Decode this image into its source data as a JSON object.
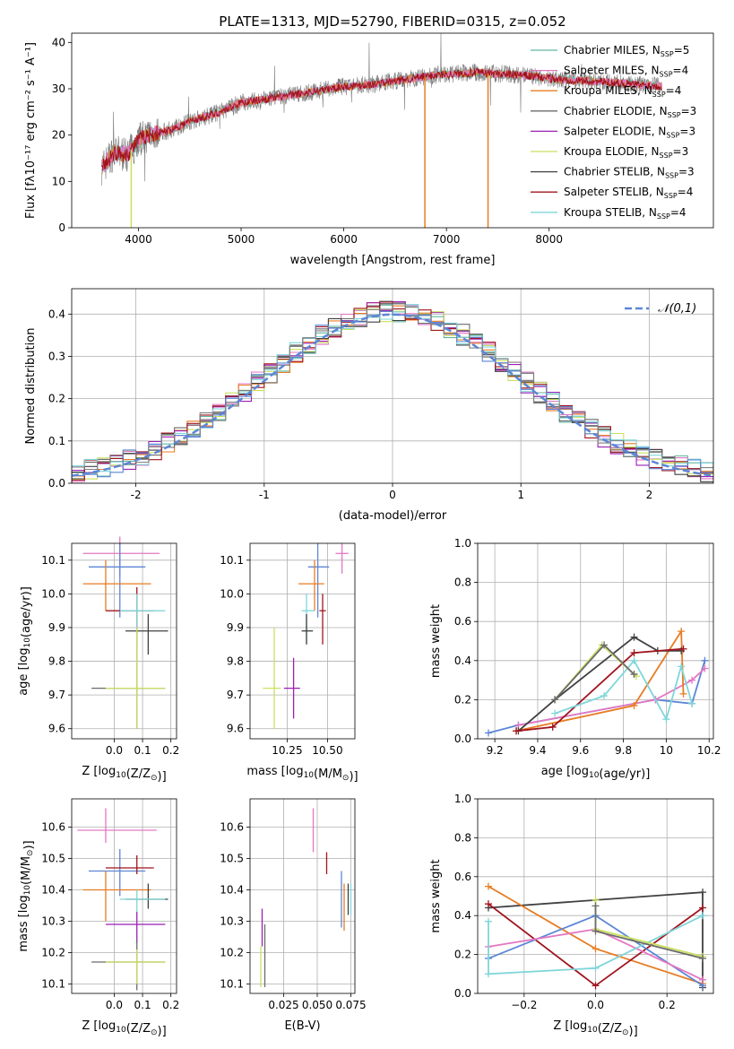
{
  "title": "PLATE=1313, MJD=52790, FIBERID=0315, z=0.052",
  "legend_spectrum": [
    {
      "model": "Chabrier MILES",
      "nssp": "5",
      "color": "#5fb8a0"
    },
    {
      "model": "Salpeter MILES",
      "nssp": "4",
      "color": "#e377c2"
    },
    {
      "model": "Kroupa MILES",
      "nssp": "4",
      "color": "#e87c22"
    },
    {
      "model": "Chabrier ELODIE",
      "nssp": "3",
      "color": "#6b6b6b"
    },
    {
      "model": "Salpeter ELODIE",
      "nssp": "3",
      "color": "#9b1fb5"
    },
    {
      "model": "Kroupa ELODIE",
      "nssp": "3",
      "color": "#c9e060"
    },
    {
      "model": "Chabrier STELIB",
      "nssp": "3",
      "color": "#404040"
    },
    {
      "model": "Salpeter STELIB",
      "nssp": "4",
      "color": "#a0141e"
    },
    {
      "model": "Kroupa STELIB",
      "nssp": "4",
      "color": "#7fd6d9"
    }
  ],
  "chart_data": [
    {
      "type": "line",
      "id": "spectrum",
      "title": "PLATE=1313, MJD=52790, FIBERID=0315, z=0.052",
      "xlabel": "wavelength [Angstrom, rest frame]",
      "ylabel": "Flux [fλ10⁻¹⁷ erg cm⁻² s⁻¹ A⁻¹]",
      "xlim": [
        3350,
        9600
      ],
      "ylim": [
        0,
        42
      ],
      "xticks": [
        4000,
        5000,
        6000,
        7000,
        8000
      ],
      "yticks": [
        0,
        10,
        20,
        30,
        40
      ],
      "continuum": {
        "x": [
          3650,
          3750,
          3900,
          4000,
          4100,
          4300,
          4500,
          4800,
          5000,
          5300,
          5600,
          6000,
          6300,
          6600,
          6900,
          7300,
          7700,
          8100,
          8500,
          8800,
          9100
        ],
        "y": [
          13,
          16,
          16,
          19,
          20,
          21,
          23,
          25,
          27,
          28,
          29,
          30.5,
          31,
          32,
          33,
          33.5,
          33,
          32,
          31.5,
          31,
          30.5
        ]
      },
      "grid": false
    },
    {
      "type": "line",
      "id": "residual_histogram",
      "xlabel": "(data-model)/error",
      "ylabel": "Normed distribution",
      "xlim": [
        -2.5,
        2.5
      ],
      "ylim": [
        0,
        0.46
      ],
      "xticks": [
        -2,
        -1,
        0,
        1,
        2
      ],
      "yticks": [
        0.0,
        0.1,
        0.2,
        0.3,
        0.4
      ],
      "reference_curve": {
        "label": "𝒩(0,1)",
        "mean": 0,
        "sigma": 1,
        "style": "dashed",
        "color": "#5b86d6"
      },
      "bin_width": 0.1,
      "grid": true
    },
    {
      "type": "scatter",
      "id": "age_vs_Z",
      "xlabel": "Z [log10(Z/Z⊙)]",
      "ylabel": "age [log10(age/yr)]",
      "xlim": [
        -0.15,
        0.22
      ],
      "ylim": [
        9.57,
        10.15
      ],
      "xticks": [
        0.0,
        0.1,
        0.2
      ],
      "xticklabels": [
        "0.0",
        "0.1",
        "0.2"
      ],
      "yticks": [
        9.6,
        9.7,
        9.8,
        9.9,
        10.0,
        10.1
      ],
      "points": [
        {
          "x": 0.02,
          "xerr": [
            0.13,
            0.14
          ],
          "y": 10.12,
          "yerr": [
            0.07,
            0.05
          ],
          "color": "#e377c2"
        },
        {
          "x": 0.02,
          "xerr": [
            0.11,
            0.09
          ],
          "y": 10.08,
          "yerr": [
            0.15,
            0.07
          ],
          "color": "#5b86d6"
        },
        {
          "x": -0.03,
          "xerr": [
            0.08,
            0.16
          ],
          "y": 10.03,
          "yerr": [
            0.08,
            0.07
          ],
          "color": "#e87c22"
        },
        {
          "x": 0.08,
          "xerr": [
            0.11,
            0.06
          ],
          "y": 9.95,
          "yerr": [
            0.1,
            0.07
          ],
          "color": "#a0141e"
        },
        {
          "x": 0.08,
          "xerr": [
            0.06,
            0.1
          ],
          "y": 9.95,
          "yerr": [
            0.1,
            0.05
          ],
          "color": "#7fd6d9"
        },
        {
          "x": 0.12,
          "xerr": [
            0.08,
            0.07
          ],
          "y": 9.89,
          "yerr": [
            0.07,
            0.05
          ],
          "color": "#404040"
        },
        {
          "x": 0.08,
          "xerr": [
            0.16,
            0.1
          ],
          "y": 9.72,
          "yerr": [
            0.12,
            0.18
          ],
          "color": "#6b6b6b"
        },
        {
          "x": 0.08,
          "xerr": [
            0.11,
            0.1
          ],
          "y": 9.72,
          "yerr": [
            0.12,
            0.18
          ],
          "color": "#c9e060"
        }
      ],
      "grid": true
    },
    {
      "type": "scatter",
      "id": "age_vs_mass",
      "xlabel": "mass [log10(M/M⊙)]",
      "ylabel": "",
      "xlim": [
        10.02,
        10.67
      ],
      "ylim": [
        9.57,
        10.15
      ],
      "xticks": [
        10.25,
        10.5
      ],
      "xticklabels": [
        "10.25",
        "10.50"
      ],
      "yticks": [
        9.6,
        9.7,
        9.8,
        9.9,
        10.0,
        10.1
      ],
      "points": [
        {
          "x": 10.59,
          "xerr": [
            0.04,
            0.04
          ],
          "y": 10.12,
          "yerr": [
            0.06,
            0.03
          ],
          "color": "#e377c2"
        },
        {
          "x": 10.44,
          "xerr": [
            0.06,
            0.07
          ],
          "y": 10.08,
          "yerr": [
            0.15,
            0.07
          ],
          "color": "#5b86d6"
        },
        {
          "x": 10.42,
          "xerr": [
            0.1,
            0.06
          ],
          "y": 10.03,
          "yerr": [
            0.08,
            0.07
          ],
          "color": "#e87c22"
        },
        {
          "x": 10.47,
          "xerr": [
            0.02,
            0.02
          ],
          "y": 9.95,
          "yerr": [
            0.1,
            0.05
          ],
          "color": "#a0141e"
        },
        {
          "x": 10.37,
          "xerr": [
            0.03,
            0.05
          ],
          "y": 9.95,
          "yerr": [
            0.1,
            0.05
          ],
          "color": "#7fd6d9"
        },
        {
          "x": 10.37,
          "xerr": [
            0.03,
            0.04
          ],
          "y": 9.89,
          "yerr": [
            0.04,
            0.05
          ],
          "color": "#404040"
        },
        {
          "x": 10.29,
          "xerr": [
            0.06,
            0.04
          ],
          "y": 9.72,
          "yerr": [
            0.09,
            0.09
          ],
          "color": "#9b1fb5"
        },
        {
          "x": 10.17,
          "xerr": [
            0.07,
            0.04
          ],
          "y": 9.72,
          "yerr": [
            0.12,
            0.18
          ],
          "color": "#c9e060"
        }
      ],
      "grid": true
    },
    {
      "type": "line",
      "id": "mass_weight_vs_age",
      "xlabel": "age [log10(age/yr)]",
      "ylabel": "mass weight",
      "xlim": [
        9.12,
        10.22
      ],
      "ylim": [
        0,
        1
      ],
      "xticks": [
        9.2,
        9.4,
        9.6,
        9.8,
        10.0,
        10.2
      ],
      "yticks": [
        0.0,
        0.2,
        0.4,
        0.6,
        0.8,
        1.0
      ],
      "series": [
        {
          "color": "#5b86d6",
          "x": [
            9.17,
            9.31,
            9.95,
            10.12,
            10.18
          ],
          "y": [
            0.03,
            0.07,
            0.2,
            0.18,
            0.4
          ]
        },
        {
          "color": "#e377c2",
          "x": [
            9.31,
            9.95,
            10.12,
            10.18
          ],
          "y": [
            0.07,
            0.2,
            0.3,
            0.36
          ]
        },
        {
          "color": "#e87c22",
          "x": [
            9.3,
            9.85,
            10.07,
            10.08
          ],
          "y": [
            0.04,
            0.17,
            0.55,
            0.23
          ]
        },
        {
          "color": "#404040",
          "x": [
            9.31,
            9.48,
            9.85,
            9.96,
            10.07
          ],
          "y": [
            0.04,
            0.2,
            0.52,
            0.45,
            0.45
          ]
        },
        {
          "color": "#a0141e",
          "x": [
            9.3,
            9.47,
            9.85,
            10.08
          ],
          "y": [
            0.04,
            0.06,
            0.44,
            0.46
          ]
        },
        {
          "color": "#7fd6d9",
          "x": [
            9.48,
            9.71,
            9.85,
            10.0,
            10.07,
            10.12
          ],
          "y": [
            0.13,
            0.22,
            0.4,
            0.1,
            0.37,
            0.18
          ]
        },
        {
          "color": "#c9e060",
          "x": [
            9.48,
            9.7,
            9.86
          ],
          "y": [
            0.2,
            0.48,
            0.32
          ]
        },
        {
          "color": "#6b6b6b",
          "x": [
            9.48,
            9.71,
            9.85
          ],
          "y": [
            0.2,
            0.48,
            0.33
          ]
        }
      ],
      "grid": true
    },
    {
      "type": "scatter",
      "id": "mass_vs_Z",
      "xlabel": "Z [log10(Z/Z⊙)]",
      "ylabel": "mass [log10(M/M⊙)]",
      "xlim": [
        -0.15,
        0.22
      ],
      "ylim": [
        10.07,
        10.69
      ],
      "xticks": [
        0.0,
        0.1,
        0.2
      ],
      "xticklabels": [
        "0.0",
        "0.1",
        "0.2"
      ],
      "yticks": [
        10.1,
        10.2,
        10.3,
        10.4,
        10.5,
        10.6
      ],
      "points": [
        {
          "x": -0.03,
          "xerr": [
            0.1,
            0.18
          ],
          "y": 10.59,
          "yerr": [
            0.04,
            0.07
          ],
          "color": "#e377c2"
        },
        {
          "x": 0.02,
          "xerr": [
            0.11,
            0.09
          ],
          "y": 10.46,
          "yerr": [
            0.08,
            0.07
          ],
          "color": "#5b86d6"
        },
        {
          "x": 0.08,
          "xerr": [
            0.11,
            0.06
          ],
          "y": 10.47,
          "yerr": [
            0.02,
            0.04
          ],
          "color": "#a0141e"
        },
        {
          "x": -0.03,
          "xerr": [
            0.08,
            0.16
          ],
          "y": 10.4,
          "yerr": [
            0.1,
            0.06
          ],
          "color": "#e87c22"
        },
        {
          "x": 0.12,
          "xerr": [
            0.08,
            0.07
          ],
          "y": 10.37,
          "yerr": [
            0.03,
            0.05
          ],
          "color": "#404040"
        },
        {
          "x": 0.08,
          "xerr": [
            0.06,
            0.1
          ],
          "y": 10.37,
          "yerr": [
            0.04,
            0.03
          ],
          "color": "#7fd6d9"
        },
        {
          "x": 0.08,
          "xerr": [
            0.11,
            0.1
          ],
          "y": 10.29,
          "yerr": [
            0.06,
            0.04
          ],
          "color": "#9b1fb5"
        },
        {
          "x": 0.08,
          "xerr": [
            0.16,
            0.1
          ],
          "y": 10.17,
          "yerr": [
            0.09,
            0.07
          ],
          "color": "#6b6b6b"
        },
        {
          "x": 0.08,
          "xerr": [
            0.11,
            0.1
          ],
          "y": 10.17,
          "yerr": [
            0.07,
            0.04
          ],
          "color": "#c9e060"
        }
      ],
      "grid": true
    },
    {
      "type": "scatter",
      "id": "mass_vs_EBV",
      "xlabel": "E(B-V)",
      "ylabel": "",
      "xlim": [
        0.0,
        0.078
      ],
      "ylim": [
        10.07,
        10.69
      ],
      "xticks": [
        0.025,
        0.05,
        0.075
      ],
      "xticklabels": [
        "0.025",
        "0.050",
        "0.075"
      ],
      "yticks": [
        10.1,
        10.2,
        10.3,
        10.4,
        10.5,
        10.6
      ],
      "points": [
        {
          "x": 0.047,
          "y": 10.59,
          "yerr": [
            0.07,
            0.07
          ],
          "color": "#e377c2"
        },
        {
          "x": 0.057,
          "y": 10.48,
          "yerr": [
            0.03,
            0.04
          ],
          "color": "#a0141e"
        },
        {
          "x": 0.068,
          "y": 10.37,
          "yerr": [
            0.09,
            0.09
          ],
          "color": "#5b86d6"
        },
        {
          "x": 0.07,
          "y": 10.36,
          "yerr": [
            0.09,
            0.06
          ],
          "color": "#e87c22"
        },
        {
          "x": 0.073,
          "y": 10.37,
          "yerr": [
            0.05,
            0.05
          ],
          "color": "#404040"
        },
        {
          "x": 0.075,
          "y": 10.37,
          "yerr": [
            0.05,
            0.05
          ],
          "color": "#7fd6d9"
        },
        {
          "x": 0.009,
          "y": 10.28,
          "yerr": [
            0.06,
            0.06
          ],
          "color": "#9b1fb5"
        },
        {
          "x": 0.011,
          "y": 10.2,
          "yerr": [
            0.11,
            0.09
          ],
          "color": "#6b6b6b"
        },
        {
          "x": 0.008,
          "y": 10.17,
          "yerr": [
            0.08,
            0.05
          ],
          "color": "#c9e060"
        }
      ],
      "grid": true
    },
    {
      "type": "line",
      "id": "mass_weight_vs_Z",
      "xlabel": "Z [log10(Z/Z⊙)]",
      "ylabel": "mass weight",
      "xlim": [
        -0.33,
        0.33
      ],
      "ylim": [
        0,
        1
      ],
      "xticks": [
        -0.2,
        0.0,
        0.2
      ],
      "xticklabels": [
        "−0.2",
        "0.0",
        "0.2"
      ],
      "yticks": [
        0.0,
        0.2,
        0.4,
        0.6,
        0.8,
        1.0
      ],
      "series": [
        {
          "color": "#404040",
          "x": [
            -0.3,
            0.3,
            0.3
          ],
          "y": [
            0.44,
            0.52,
            0.03
          ]
        },
        {
          "color": "#e87c22",
          "x": [
            -0.3,
            0.0,
            0.3
          ],
          "y": [
            0.55,
            0.23,
            0.05
          ]
        },
        {
          "color": "#a0141e",
          "x": [
            -0.3,
            0.0,
            0.3
          ],
          "y": [
            0.46,
            0.04,
            0.44
          ]
        },
        {
          "color": "#5b86d6",
          "x": [
            -0.3,
            0.0,
            0.3
          ],
          "y": [
            0.18,
            0.4,
            0.04
          ]
        },
        {
          "color": "#e377c2",
          "x": [
            -0.3,
            0.0,
            0.3
          ],
          "y": [
            0.24,
            0.33,
            0.07
          ]
        },
        {
          "color": "#7fd6d9",
          "x": [
            -0.3,
            -0.3,
            0.0,
            0.3
          ],
          "y": [
            0.37,
            0.1,
            0.13,
            0.4
          ]
        },
        {
          "color": "#c9e060",
          "x": [
            0.0,
            0.0,
            0.3
          ],
          "y": [
            0.48,
            0.33,
            0.19
          ]
        },
        {
          "color": "#6b6b6b",
          "x": [
            0.0,
            0.0,
            0.3
          ],
          "y": [
            0.45,
            0.32,
            0.18
          ]
        }
      ],
      "grid": true
    }
  ]
}
